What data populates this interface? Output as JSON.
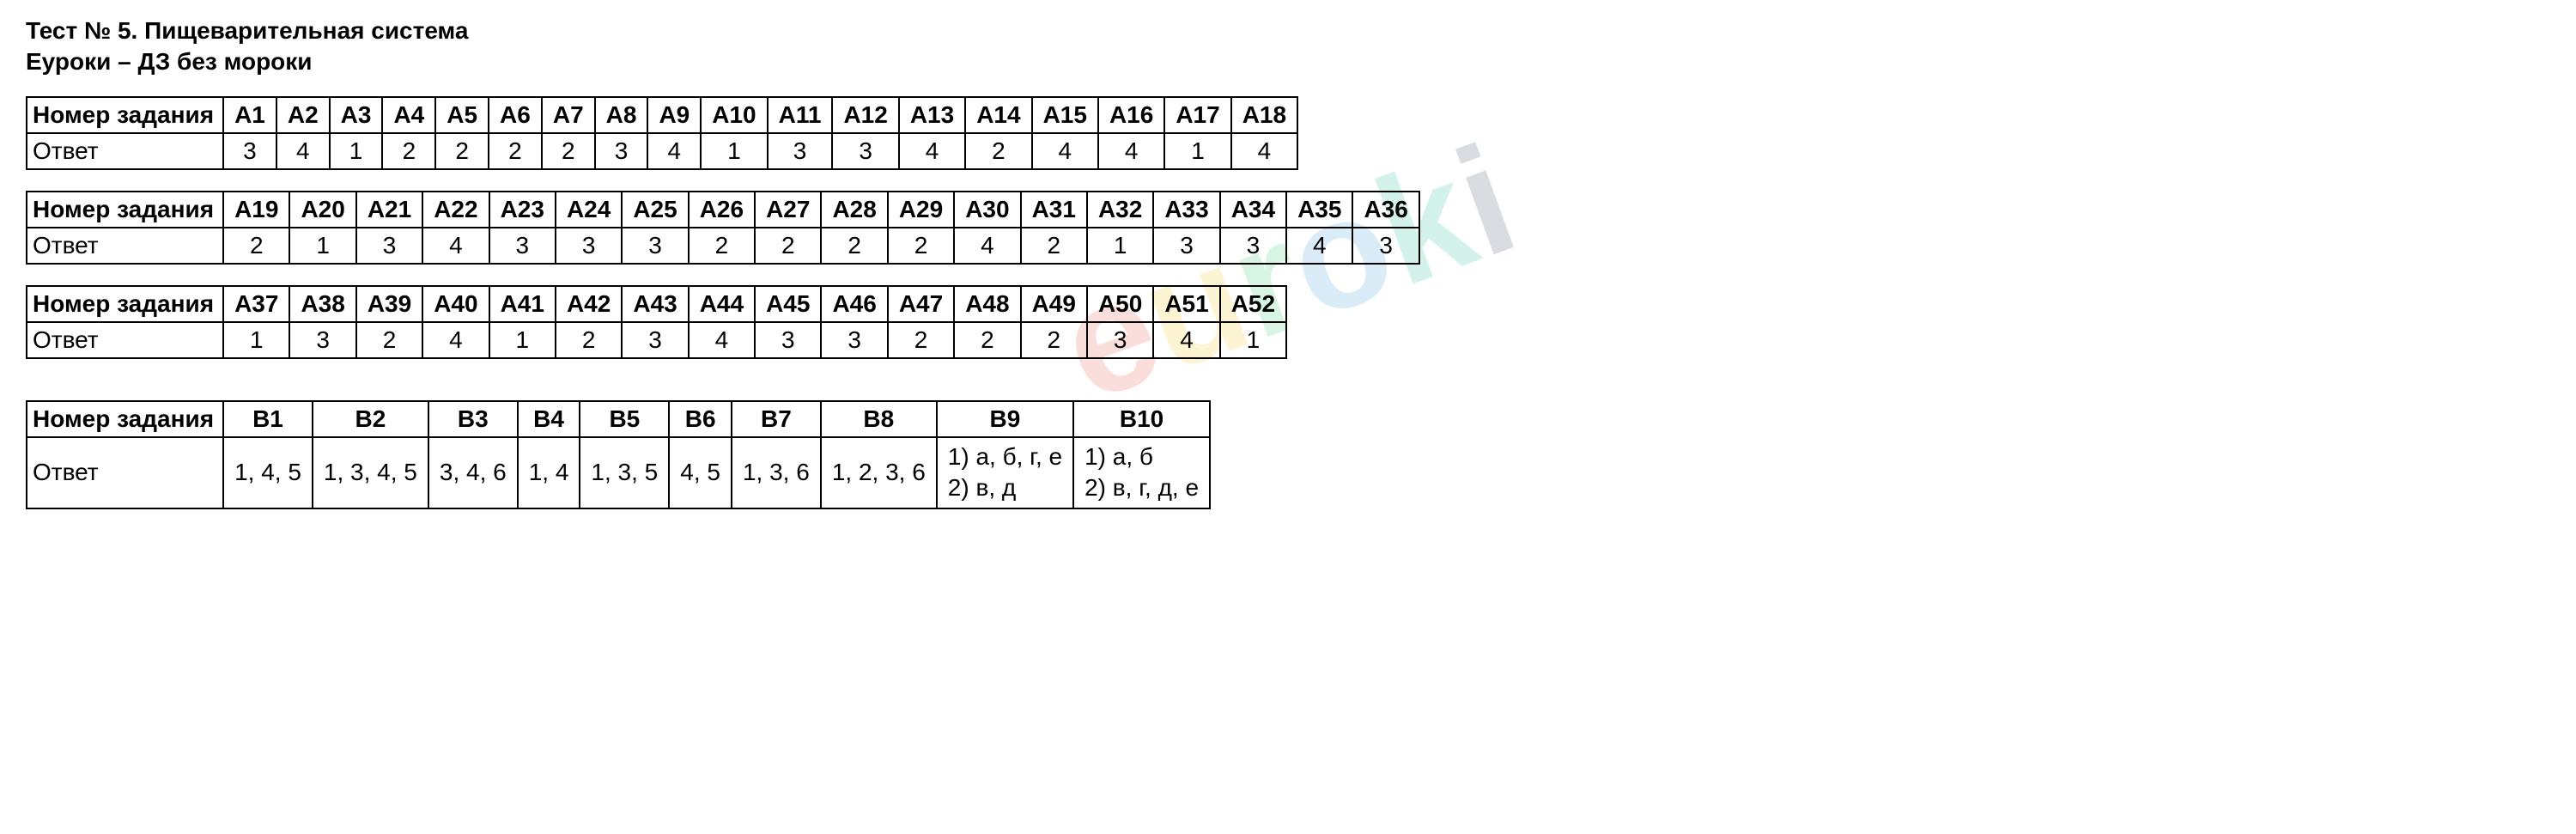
{
  "title": "Тест № 5. Пищеварительная система",
  "subtitle": "Еуроки – ДЗ без мороки",
  "labels": {
    "task_number": "Номер задания",
    "answer": "Ответ"
  },
  "tables": [
    {
      "headers": [
        "А1",
        "А2",
        "А3",
        "А4",
        "А5",
        "А6",
        "А7",
        "А8",
        "А9",
        "А10",
        "А11",
        "А12",
        "А13",
        "А14",
        "А15",
        "А16",
        "А17",
        "А18"
      ],
      "answers": [
        "3",
        "4",
        "1",
        "2",
        "2",
        "2",
        "2",
        "3",
        "4",
        "1",
        "3",
        "3",
        "4",
        "2",
        "4",
        "4",
        "1",
        "4"
      ]
    },
    {
      "headers": [
        "А19",
        "А20",
        "А21",
        "А22",
        "А23",
        "А24",
        "А25",
        "А26",
        "А27",
        "А28",
        "А29",
        "А30",
        "А31",
        "А32",
        "А33",
        "А34",
        "А35",
        "А36"
      ],
      "answers": [
        "2",
        "1",
        "3",
        "4",
        "3",
        "3",
        "3",
        "2",
        "2",
        "2",
        "2",
        "4",
        "2",
        "1",
        "3",
        "3",
        "4",
        "3"
      ]
    },
    {
      "headers": [
        "А37",
        "А38",
        "А39",
        "А40",
        "А41",
        "А42",
        "А43",
        "А44",
        "А45",
        "А46",
        "А47",
        "А48",
        "А49",
        "А50",
        "А51",
        "А52"
      ],
      "answers": [
        "1",
        "3",
        "2",
        "4",
        "1",
        "2",
        "3",
        "4",
        "3",
        "3",
        "2",
        "2",
        "2",
        "3",
        "4",
        "1"
      ]
    },
    {
      "headers": [
        "В1",
        "В2",
        "В3",
        "В4",
        "В5",
        "В6",
        "В7",
        "В8",
        "В9",
        "В10"
      ],
      "answers": [
        "1, 4, 5",
        "1, 3, 4, 5",
        "3, 4, 6",
        "1, 4",
        "1, 3, 5",
        "4, 5",
        "1, 3, 6",
        "1, 2, 3, 6",
        "1) а, б, г, е\n2) в, д",
        "1) а, б\n2) в, г, д, е"
      ]
    }
  ],
  "watermark": {
    "text": "euroki",
    "colors": [
      "#e74c3c",
      "#f1c40f",
      "#2ecc71",
      "#3498db",
      "#1abc9c",
      "#34495e"
    ]
  }
}
